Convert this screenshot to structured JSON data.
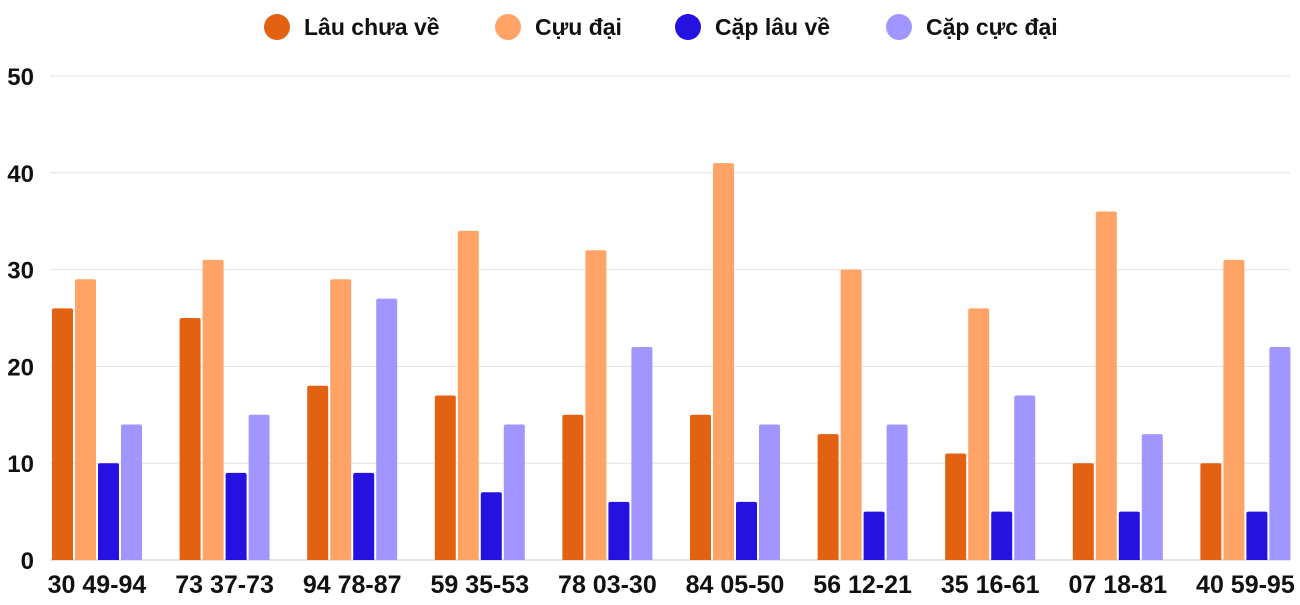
{
  "chart_data": {
    "type": "bar",
    "title": "",
    "xlabel": "",
    "ylabel": "",
    "ylim": [
      0,
      50
    ],
    "yticks": [
      0,
      10,
      20,
      30,
      40,
      50
    ],
    "grid": true,
    "legend_position": "top",
    "categories": [
      "30 49-94",
      "73 37-73",
      "94 78-87",
      "59 35-53",
      "78 03-30",
      "84 05-50",
      "56 12-21",
      "35 16-61",
      "07 18-81",
      "40 59-95"
    ],
    "series": [
      {
        "name": "Lâu chưa về",
        "color": "#e26212",
        "values": [
          26,
          25,
          18,
          17,
          15,
          15,
          13,
          11,
          10,
          10
        ]
      },
      {
        "name": "Cựu đại",
        "color": "#ffa366",
        "values": [
          29,
          31,
          29,
          34,
          32,
          41,
          30,
          26,
          36,
          31
        ]
      },
      {
        "name": "Cặp lâu về",
        "color": "#2511e0",
        "values": [
          10,
          9,
          9,
          7,
          6,
          6,
          5,
          5,
          5,
          5
        ]
      },
      {
        "name": "Cặp cực đại",
        "color": "#a196ff",
        "values": [
          14,
          15,
          27,
          14,
          22,
          14,
          14,
          17,
          13,
          22
        ]
      }
    ]
  }
}
